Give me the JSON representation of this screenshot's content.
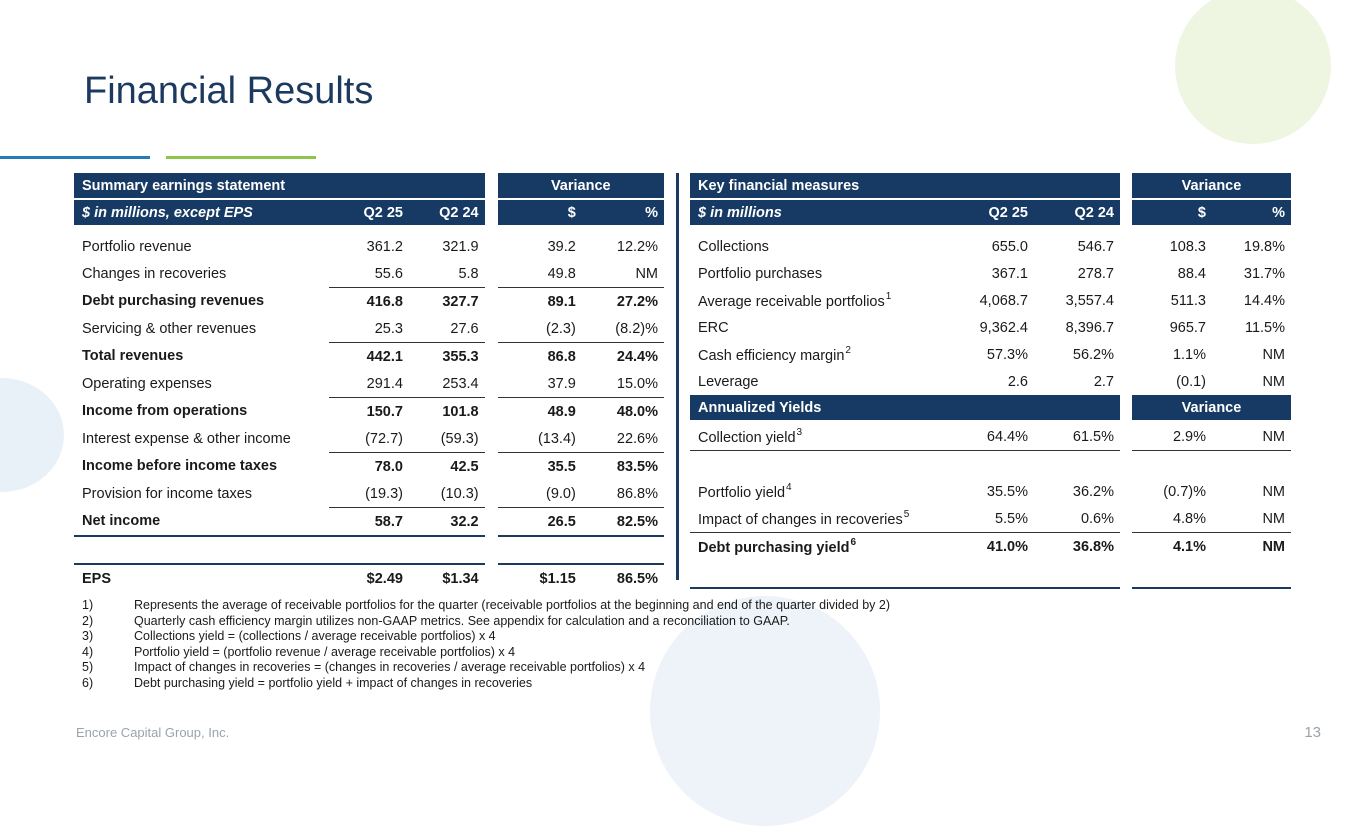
{
  "title": "Financial Results",
  "left": {
    "header": {
      "name": "Summary earnings statement",
      "variance": "Variance"
    },
    "subheader": {
      "label": "$ in millions, except EPS",
      "q2_25": "Q2 25",
      "q2_24": "Q2 24",
      "dollar": "$",
      "pct": "%"
    },
    "rows": [
      {
        "label": "Portfolio revenue",
        "a": "361.2",
        "b": "321.9",
        "c": "39.2",
        "d": "12.2%"
      },
      {
        "label": "Changes in recoveries",
        "a": "55.6",
        "b": "5.8",
        "c": "49.8",
        "d": "NM"
      },
      {
        "label": "Debt purchasing revenues",
        "a": "416.8",
        "b": "327.7",
        "c": "89.1",
        "d": "27.2%"
      },
      {
        "label": "Servicing & other revenues",
        "a": "25.3",
        "b": "27.6",
        "c": "(2.3)",
        "d": "(8.2)%"
      },
      {
        "label": "Total revenues",
        "a": "442.1",
        "b": "355.3",
        "c": "86.8",
        "d": "24.4%"
      },
      {
        "label": "Operating expenses",
        "a": "291.4",
        "b": "253.4",
        "c": "37.9",
        "d": "15.0%"
      },
      {
        "label": "Income from operations",
        "a": "150.7",
        "b": "101.8",
        "c": "48.9",
        "d": "48.0%"
      },
      {
        "label": "Interest expense & other income",
        "a": "(72.7)",
        "b": "(59.3)",
        "c": "(13.4)",
        "d": "22.6%"
      },
      {
        "label": "Income before income taxes",
        "a": "78.0",
        "b": "42.5",
        "c": "35.5",
        "d": "83.5%"
      },
      {
        "label": "Provision for income taxes",
        "a": "(19.3)",
        "b": "(10.3)",
        "c": "(9.0)",
        "d": "86.8%"
      },
      {
        "label": "Net income",
        "a": "58.7",
        "b": "32.2",
        "c": "26.5",
        "d": "82.5%"
      },
      {
        "label": "EPS",
        "a": "$2.49",
        "b": "$1.34",
        "c": "$1.15",
        "d": "86.5%"
      }
    ]
  },
  "right": {
    "header": {
      "name": "Key financial measures",
      "variance": "Variance"
    },
    "subheader": {
      "label": "$ in millions",
      "q2_25": "Q2 25",
      "q2_24": "Q2 24",
      "dollar": "$",
      "pct": "%"
    },
    "rows": [
      {
        "label": "Collections",
        "sup": "",
        "a": "655.0",
        "b": "546.7",
        "c": "108.3",
        "d": "19.8%"
      },
      {
        "label": "Portfolio purchases",
        "sup": "",
        "a": "367.1",
        "b": "278.7",
        "c": "88.4",
        "d": "31.7%"
      },
      {
        "label": "Average receivable portfolios",
        "sup": "1",
        "a": "4,068.7",
        "b": "3,557.4",
        "c": "511.3",
        "d": "14.4%"
      },
      {
        "label": "ERC",
        "sup": "",
        "a": "9,362.4",
        "b": "8,396.7",
        "c": "965.7",
        "d": "11.5%"
      },
      {
        "label": "Cash efficiency margin",
        "sup": "2",
        "a": "57.3%",
        "b": "56.2%",
        "c": "1.1%",
        "d": "NM"
      },
      {
        "label": "Leverage",
        "sup": "",
        "a": "2.6",
        "b": "2.7",
        "c": "(0.1)",
        "d": "NM"
      }
    ],
    "yields_header": {
      "name": "Annualized Yields",
      "variance": "Variance"
    },
    "yields": [
      {
        "label": "Collection yield",
        "sup": "3",
        "a": "64.4%",
        "b": "61.5%",
        "c": "2.9%",
        "d": "NM"
      },
      {
        "label": "Portfolio yield",
        "sup": "4",
        "a": "35.5%",
        "b": "36.2%",
        "c": "(0.7)%",
        "d": "NM"
      },
      {
        "label": "Impact of changes in recoveries",
        "sup": "5",
        "a": "5.5%",
        "b": "0.6%",
        "c": "4.8%",
        "d": "NM"
      },
      {
        "label": "Debt purchasing yield",
        "sup": "6",
        "a": "41.0%",
        "b": "36.8%",
        "c": "4.1%",
        "d": "NM"
      }
    ]
  },
  "notes": [
    {
      "num": "1)",
      "text": "Represents the average of receivable portfolios for the quarter (receivable portfolios at the beginning and end of the quarter divided by 2)"
    },
    {
      "num": "2)",
      "text": "Quarterly cash efficiency margin utilizes non-GAAP metrics. See appendix for calculation and a reconciliation to GAAP."
    },
    {
      "num": "3)",
      "text": "Collections yield = (collections / average receivable portfolios) x 4"
    },
    {
      "num": "4)",
      "text": "Portfolio yield = (portfolio revenue / average receivable portfolios) x 4"
    },
    {
      "num": "5)",
      "text": "Impact of changes in recoveries = (changes in recoveries / average receivable portfolios) x 4"
    },
    {
      "num": "6)",
      "text": "Debt purchasing yield = portfolio yield + impact of changes in recoveries"
    }
  ],
  "footer": "Encore Capital Group, Inc.",
  "page_number": "13",
  "colors": {
    "navy": "#163a63",
    "blue_line": "#2a7ab8",
    "green_line": "#8dc44a"
  }
}
